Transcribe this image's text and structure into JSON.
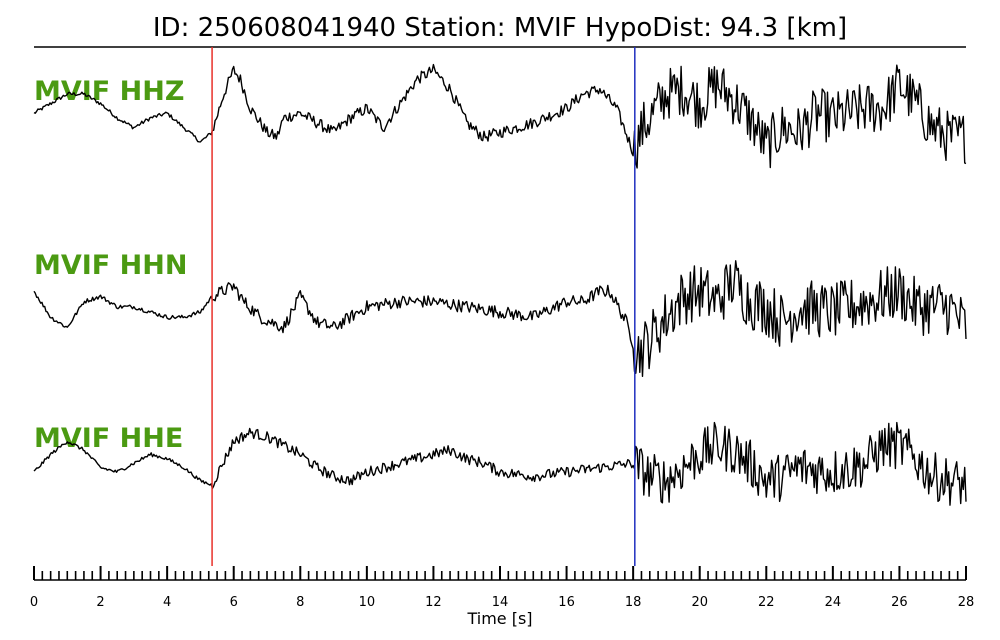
{
  "title": "ID: 250608041940   Station: MVIF   HypoDist:     94.3 [km]",
  "chart_data": {
    "type": "line",
    "xlabel": "Time [s]",
    "xlim": [
      0,
      28
    ],
    "x_ticks": [
      "0",
      "2",
      "4",
      "6",
      "8",
      "10",
      "12",
      "14",
      "16",
      "18",
      "20",
      "22",
      "24",
      "26",
      "28"
    ],
    "minor_tick_step": 0.25,
    "markers": [
      {
        "time": 5.35,
        "color": "#e8302a"
      },
      {
        "time": 18.05,
        "color": "#1f2fbf"
      }
    ],
    "series": [
      {
        "name": "MVIF HHZ",
        "x": [
          0,
          0.5,
          1,
          1.5,
          2,
          2.5,
          3,
          3.5,
          4,
          4.5,
          5,
          5.35,
          5.7,
          6,
          6.2,
          6.5,
          7,
          7.3,
          7.5,
          8,
          8.5,
          9,
          9.5,
          10,
          10.5,
          11,
          11.5,
          12,
          12.5,
          13,
          13.5,
          14,
          15,
          16,
          16.5,
          17,
          17.5,
          18,
          18.3,
          19,
          19.5,
          20,
          20.5,
          21,
          21.5,
          22,
          22.5,
          23,
          23.5,
          24,
          24.5,
          25,
          25.5,
          26,
          26.5,
          27,
          27.5,
          28
        ],
        "y": [
          0.1,
          0.3,
          0.5,
          0.5,
          0.3,
          0.0,
          -0.2,
          0.0,
          0.1,
          -0.2,
          -0.5,
          -0.3,
          0.5,
          1.0,
          0.8,
          0.2,
          -0.3,
          -0.4,
          0.0,
          0.1,
          -0.1,
          -0.3,
          0.0,
          0.2,
          -0.2,
          0.3,
          0.8,
          1.0,
          0.6,
          -0.1,
          -0.4,
          -0.3,
          -0.1,
          0.2,
          0.5,
          0.6,
          0.2,
          -0.7,
          -0.2,
          0.5,
          0.6,
          0.3,
          0.7,
          0.4,
          0.0,
          -0.6,
          -0.2,
          -0.3,
          0.1,
          0.0,
          0.1,
          0.2,
          0.2,
          0.7,
          0.3,
          -0.2,
          -0.4,
          -0.4
        ]
      },
      {
        "name": "MVIF HHN",
        "x": [
          0,
          0.5,
          1,
          1.5,
          2,
          2.5,
          3,
          3.5,
          4,
          4.5,
          5,
          5.35,
          6,
          6.3,
          6.8,
          7.5,
          8,
          8.5,
          9,
          10,
          11,
          12,
          13,
          14,
          15,
          16,
          16.5,
          17,
          17.3,
          17.8,
          18.1,
          18.3,
          19,
          19.5,
          20,
          20.5,
          21,
          21.5,
          22,
          22.5,
          23,
          24,
          25,
          25.5,
          26,
          26.5,
          27,
          27.5,
          28
        ],
        "y": [
          0.4,
          -0.1,
          -0.3,
          0.2,
          0.3,
          0.1,
          0.1,
          0.0,
          -0.1,
          -0.1,
          0.0,
          0.3,
          0.5,
          0.2,
          -0.1,
          -0.3,
          0.3,
          -0.2,
          -0.3,
          0.1,
          0.2,
          0.2,
          0.1,
          0.0,
          -0.1,
          0.2,
          0.2,
          0.4,
          0.4,
          -0.2,
          -0.8,
          -0.7,
          -0.1,
          0.3,
          0.4,
          0.2,
          0.6,
          0.2,
          0.1,
          -0.2,
          0.1,
          0.0,
          0.2,
          0.3,
          0.4,
          0.1,
          0.1,
          0.1,
          -0.3
        ]
      },
      {
        "name": "MVIF HHE",
        "x": [
          0,
          0.5,
          1,
          1.5,
          2,
          2.5,
          3,
          3.5,
          4,
          4.5,
          5,
          5.35,
          6,
          6.5,
          7,
          7.5,
          8,
          8.5,
          9,
          9.5,
          10,
          11,
          12,
          12.5,
          13,
          13.5,
          14,
          15,
          16,
          17,
          18,
          18.5,
          19,
          19.5,
          20,
          20.5,
          21,
          21.5,
          22,
          22.5,
          23,
          24,
          25,
          25.5,
          26,
          26.5,
          27,
          27.5,
          28
        ],
        "y": [
          0.0,
          0.4,
          0.7,
          0.5,
          0.1,
          0.0,
          0.2,
          0.4,
          0.3,
          0.1,
          -0.2,
          -0.3,
          0.7,
          0.9,
          0.8,
          0.6,
          0.4,
          0.1,
          -0.1,
          -0.2,
          0.0,
          0.2,
          0.4,
          0.5,
          0.3,
          0.2,
          0.0,
          -0.1,
          0.0,
          0.1,
          0.2,
          -0.1,
          -0.2,
          0.1,
          0.4,
          0.6,
          0.5,
          0.2,
          -0.2,
          -0.1,
          0.1,
          0.0,
          0.2,
          0.6,
          0.6,
          0.3,
          -0.1,
          -0.2,
          -0.3
        ]
      }
    ]
  }
}
